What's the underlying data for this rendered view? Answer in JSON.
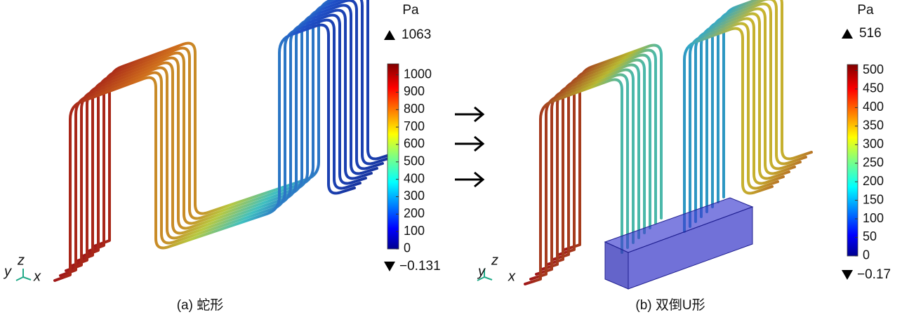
{
  "panels": [
    {
      "caption": "(a) 蛇形",
      "axes": {
        "y": "y",
        "z": "z",
        "x": "x"
      },
      "colorbar": {
        "unit": "Pa",
        "max": 1063,
        "min": {
          "value": -0.131,
          "label": "−0.131"
        },
        "ticks": [
          0,
          100,
          200,
          300,
          400,
          500,
          600,
          700,
          800,
          900,
          1000
        ]
      }
    },
    {
      "caption": "(b) 双倒U形",
      "axes": {
        "y": "y",
        "z": "z",
        "x": "x"
      },
      "colorbar": {
        "unit": "Pa",
        "max": 516,
        "min": {
          "value": -0.17,
          "label": "−0.17"
        },
        "ticks": [
          0,
          50,
          100,
          150,
          200,
          250,
          300,
          350,
          400,
          450,
          500
        ]
      }
    }
  ]
}
